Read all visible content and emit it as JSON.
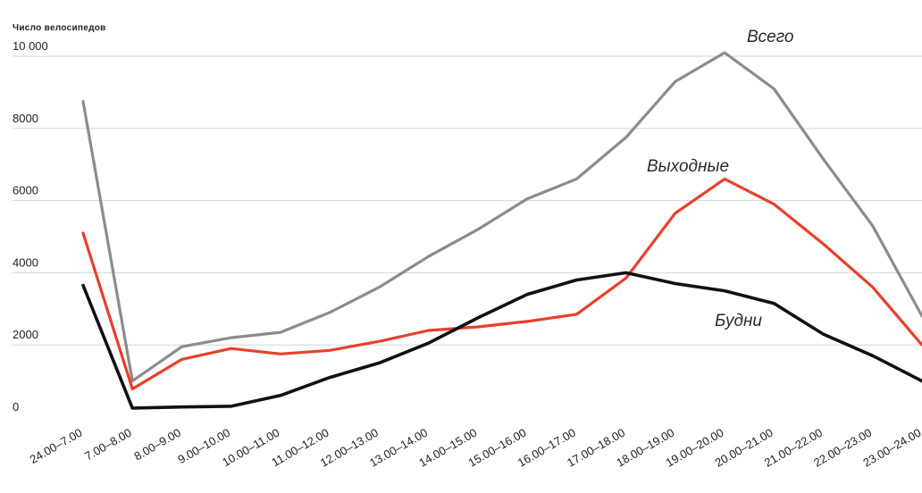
{
  "chart_data": {
    "type": "line",
    "ylabel": "Число велосипедов",
    "ylim": [
      0,
      10000
    ],
    "yticks": [
      {
        "value": 0,
        "label": "0"
      },
      {
        "value": 2000,
        "label": "2000"
      },
      {
        "value": 4000,
        "label": "4000"
      },
      {
        "value": 6000,
        "label": "6000"
      },
      {
        "value": 8000,
        "label": "8000"
      },
      {
        "value": 10000,
        "label": "10 000"
      }
    ],
    "grid": true,
    "categories": [
      "24.00–7.00",
      "7.00–8.00",
      "8.00–9.00",
      "9.00–10.00",
      "10.00–11.00",
      "11.00–12.00",
      "12.00–13.00",
      "13.00–14.00",
      "14.00–15.00",
      "15.00–16.00",
      "16.00–17.00",
      "17.00–18.00",
      "18.00–19.00",
      "19.00–20.00",
      "20.00–21.00",
      "21.00–22.00",
      "22.00–23.00",
      "23.00–24.00"
    ],
    "series": [
      {
        "name": "Всего",
        "color": "#8c8c8c",
        "values": [
          8750,
          1000,
          1950,
          2200,
          2350,
          2900,
          3600,
          4450,
          5200,
          6050,
          6600,
          7750,
          9300,
          10100,
          9100,
          7150,
          5300,
          2800
        ]
      },
      {
        "name": "Выходные",
        "color": "#e8402a",
        "values": [
          5100,
          780,
          1600,
          1900,
          1750,
          1850,
          2100,
          2400,
          2500,
          2650,
          2850,
          3850,
          5650,
          6600,
          5900,
          4800,
          3600,
          2000
        ]
      },
      {
        "name": "Будни",
        "color": "#111111",
        "values": [
          3650,
          250,
          280,
          300,
          600,
          1100,
          1500,
          2050,
          2750,
          3400,
          3800,
          4000,
          3700,
          3500,
          3150,
          2300,
          1700,
          1000
        ]
      }
    ]
  }
}
